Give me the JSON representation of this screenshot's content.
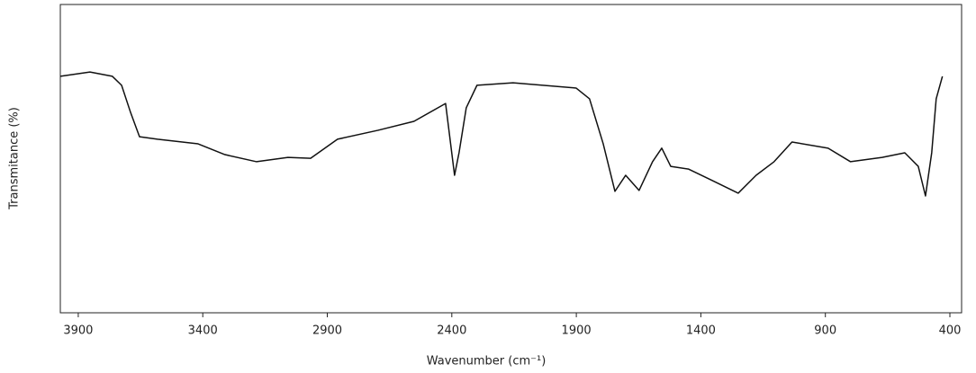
{
  "chart_data": {
    "type": "line",
    "x_label": "Wavenumber (cm⁻¹)",
    "y_label": "Transmitance (%)",
    "x": [
      3972,
      3853,
      3763,
      3726,
      3690,
      3654,
      3582,
      3419,
      3311,
      3184,
      3058,
      2967,
      2859,
      2696,
      2552,
      2425,
      2389,
      2371,
      2342,
      2299,
      2154,
      1901,
      1847,
      1792,
      1745,
      1702,
      1648,
      1594,
      1557,
      1521,
      1449,
      1359,
      1250,
      1178,
      1106,
      1034,
      889,
      799,
      672,
      581,
      527,
      498,
      473,
      455,
      430
    ],
    "series": [
      {
        "color": "#111111",
        "values": [
          76.7,
          78.1,
          76.7,
          73.8,
          65.0,
          57.1,
          56.3,
          54.8,
          51.3,
          49.0,
          50.4,
          50.1,
          56.3,
          59.2,
          62.1,
          67.9,
          44.6,
          51.9,
          66.5,
          73.8,
          74.6,
          72.9,
          69.4,
          54.8,
          39.4,
          44.6,
          39.7,
          49.0,
          53.4,
          47.5,
          46.6,
          43.1,
          38.8,
          44.6,
          49.0,
          55.4,
          53.4,
          49.0,
          50.4,
          51.9,
          47.5,
          37.9,
          51.9,
          69.4,
          76.7
        ]
      }
    ],
    "xlim": [
      3972,
      353
    ],
    "ylim": [
      0,
      100
    ],
    "xticks": [
      3900,
      3400,
      2900,
      2400,
      1900,
      1400,
      900,
      400
    ]
  }
}
